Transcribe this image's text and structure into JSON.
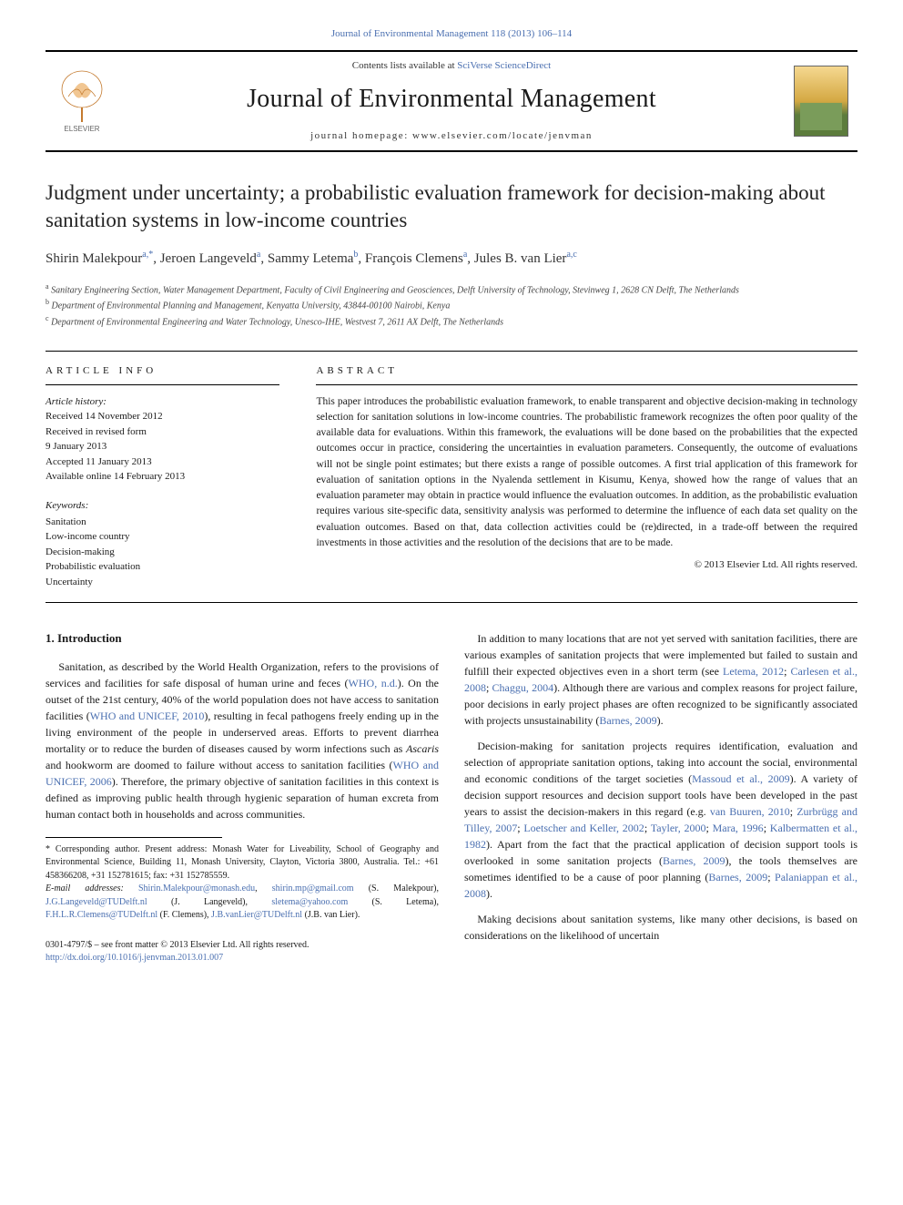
{
  "colors": {
    "link": "#4a6fb0",
    "text": "#1a1a1a",
    "rule": "#000000",
    "background": "#ffffff"
  },
  "masthead": {
    "top_ref": "Journal of Environmental Management 118 (2013) 106–114",
    "contents_prefix": "Contents lists available at ",
    "contents_link": "SciVerse ScienceDirect",
    "journal_name": "Journal of Environmental Management",
    "homepage_prefix": "journal homepage: ",
    "homepage_url": "www.elsevier.com/locate/jenvman",
    "publisher_logo_label": "ELSEVIER"
  },
  "article": {
    "title": "Judgment under uncertainty; a probabilistic evaluation framework for decision-making about sanitation systems in low-income countries",
    "authors_html": "Shirin Malekpour<span class='sup'>a,*</span>, Jeroen Langeveld<span class='sup'>a</span>, Sammy Letema<span class='sup'>b</span>, François Clemens<span class='sup'>a</span>, Jules B. van Lier<span class='sup'>a,c</span>",
    "affiliations": [
      "<span class='sup'>a</span> Sanitary Engineering Section, Water Management Department, Faculty of Civil Engineering and Geosciences, Delft University of Technology, Stevinweg 1, 2628 CN Delft, The Netherlands",
      "<span class='sup'>b</span> Department of Environmental Planning and Management, Kenyatta University, 43844-00100 Nairobi, Kenya",
      "<span class='sup'>c</span> Department of Environmental Engineering and Water Technology, Unesco-IHE, Westvest 7, 2611 AX Delft, The Netherlands"
    ]
  },
  "info": {
    "header": "ARTICLE INFO",
    "history_label": "Article history:",
    "history": [
      "Received 14 November 2012",
      "Received in revised form",
      "9 January 2013",
      "Accepted 11 January 2013",
      "Available online 14 February 2013"
    ],
    "keywords_label": "Keywords:",
    "keywords": [
      "Sanitation",
      "Low-income country",
      "Decision-making",
      "Probabilistic evaluation",
      "Uncertainty"
    ]
  },
  "abstract": {
    "header": "ABSTRACT",
    "text": "This paper introduces the probabilistic evaluation framework, to enable transparent and objective decision-making in technology selection for sanitation solutions in low-income countries. The probabilistic framework recognizes the often poor quality of the available data for evaluations. Within this framework, the evaluations will be done based on the probabilities that the expected outcomes occur in practice, considering the uncertainties in evaluation parameters. Consequently, the outcome of evaluations will not be single point estimates; but there exists a range of possible outcomes. A first trial application of this framework for evaluation of sanitation options in the Nyalenda settlement in Kisumu, Kenya, showed how the range of values that an evaluation parameter may obtain in practice would influence the evaluation outcomes. In addition, as the probabilistic evaluation requires various site-specific data, sensitivity analysis was performed to determine the influence of each data set quality on the evaluation outcomes. Based on that, data collection activities could be (re)directed, in a trade-off between the required investments in those activities and the resolution of the decisions that are to be made.",
    "copyright": "© 2013 Elsevier Ltd. All rights reserved."
  },
  "body": {
    "section_number": "1.",
    "section_title": "Introduction",
    "left_paras": [
      "Sanitation, as described by the World Health Organization, refers to the provisions of services and facilities for safe disposal of human urine and feces (<span class='cite'>WHO, n.d.</span>). On the outset of the 21st century, 40% of the world population does not have access to sanitation facilities (<span class='cite'>WHO and UNICEF, 2010</span>), resulting in fecal pathogens freely ending up in the living environment of the people in underserved areas. Efforts to prevent diarrhea mortality or to reduce the burden of diseases caused by worm infections such as <span class='species'>Ascaris</span> and hookworm are doomed to failure without access to sanitation facilities (<span class='cite'>WHO and UNICEF, 2006</span>). Therefore, the primary objective of sanitation facilities in this context is defined as improving public health through hygienic separation of human excreta from human contact both in households and across communities."
    ],
    "right_paras": [
      "In addition to many locations that are not yet served with sanitation facilities, there are various examples of sanitation projects that were implemented but failed to sustain and fulfill their expected objectives even in a short term (see <span class='cite'>Letema, 2012</span>; <span class='cite'>Carlesen et al., 2008</span>; <span class='cite'>Chaggu, 2004</span>). Although there are various and complex reasons for project failure, poor decisions in early project phases are often recognized to be significantly associated with projects unsustainability (<span class='cite'>Barnes, 2009</span>).",
      "Decision-making for sanitation projects requires identification, evaluation and selection of appropriate sanitation options, taking into account the social, environmental and economic conditions of the target societies (<span class='cite'>Massoud et al., 2009</span>). A variety of decision support resources and decision support tools have been developed in the past years to assist the decision-makers in this regard (e.g. <span class='cite'>van Buuren, 2010</span>; <span class='cite'>Zurbrügg and Tilley, 2007</span>; <span class='cite'>Loetscher and Keller, 2002</span>; <span class='cite'>Tayler, 2000</span>; <span class='cite'>Mara, 1996</span>; <span class='cite'>Kalbermatten et al., 1982</span>). Apart from the fact that the practical application of decision support tools is overlooked in some sanitation projects (<span class='cite'>Barnes, 2009</span>), the tools themselves are sometimes identified to be a cause of poor planning (<span class='cite'>Barnes, 2009</span>; <span class='cite'>Palaniappan et al., 2008</span>).",
      "Making decisions about sanitation systems, like many other decisions, is based on considerations on the likelihood of uncertain"
    ]
  },
  "footnote": {
    "corresponding": "* Corresponding author. Present address: Monash Water for Liveability, School of Geography and Environmental Science, Building 11, Monash University, Clayton, Victoria 3800, Australia. Tel.: +61 458366208, +31 152781615; fax: +31 152785559.",
    "emails_label": "E-mail addresses:",
    "emails_html": "<span class='email'>Shirin.Malekpour@monash.edu</span>, <span class='email'>shirin.mp@gmail.com</span> (S. Malekpour), <span class='email'>J.G.Langeveld@TUDelft.nl</span> (J. Langeveld), <span class='email'>sletema@yahoo.com</span> (S. Letema), <span class='email'>F.H.L.R.Clemens@TUDelft.nl</span> (F. Clemens), <span class='email'>J.B.vanLier@TUDelft.nl</span> (J.B. van Lier)."
  },
  "bottom": {
    "issn_line": "0301-4797/$ – see front matter © 2013 Elsevier Ltd. All rights reserved.",
    "doi": "http://dx.doi.org/10.1016/j.jenvman.2013.01.007"
  }
}
